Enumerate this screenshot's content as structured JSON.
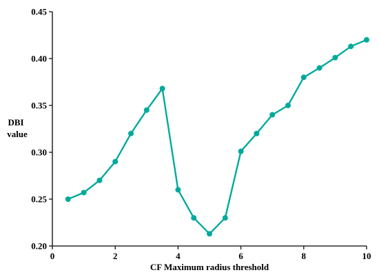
{
  "chart_data": {
    "type": "line",
    "xlabel": "CF Maximum radius threshold",
    "ylabel_lines": [
      "DBI",
      "value"
    ],
    "xlim": [
      0,
      10
    ],
    "ylim": [
      0.2,
      0.45
    ],
    "xticks": [
      0,
      2,
      4,
      6,
      8,
      10
    ],
    "xtick_labels": [
      "0",
      "2",
      "4",
      "6",
      "8",
      "10"
    ],
    "yticks": [
      0.2,
      0.25,
      0.3,
      0.35,
      0.4,
      0.45
    ],
    "ytick_labels": [
      "0.20",
      "0.25",
      "0.30",
      "0.35",
      "0.40",
      "0.45"
    ],
    "grid": false,
    "line_color": "#00A99D",
    "series": [
      {
        "x": [
          0.5,
          1.0,
          1.5,
          2.0,
          2.5,
          3.0,
          3.5,
          4.0,
          4.5,
          5.0,
          5.5,
          6.0,
          6.5,
          7.0,
          7.5,
          8.0,
          8.5,
          9.0,
          9.5,
          10.0
        ],
        "y": [
          0.25,
          0.257,
          0.27,
          0.29,
          0.32,
          0.345,
          0.368,
          0.26,
          0.23,
          0.213,
          0.23,
          0.301,
          0.32,
          0.34,
          0.35,
          0.38,
          0.39,
          0.401,
          0.413,
          0.42
        ]
      }
    ]
  }
}
